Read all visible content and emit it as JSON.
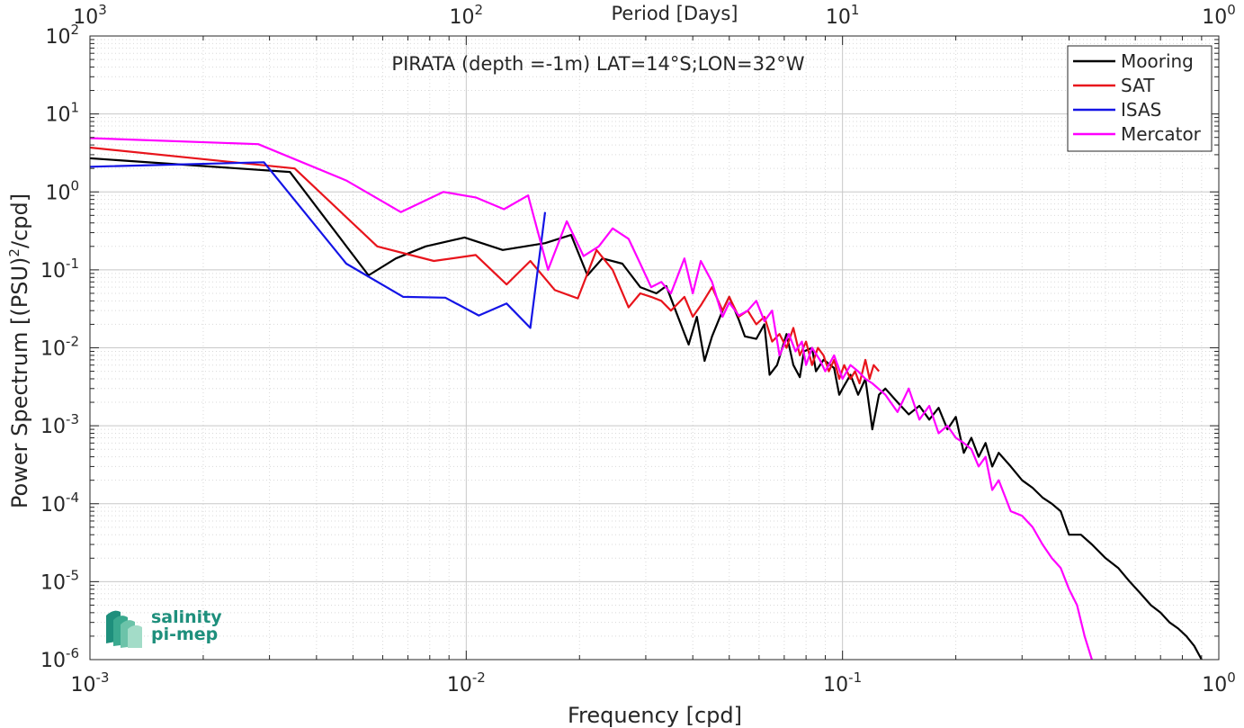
{
  "chart_data": {
    "type": "line",
    "title": "PIRATA (depth =-1m) LAT=14°S;LON=32°W",
    "xlabel": "Frequency [cpd]",
    "ylabel_main": "Power Spectrum [(PSU)",
    "ylabel_sup": "2",
    "ylabel_tail": "/cpd]",
    "top_xlabel": "Period [Days]",
    "xscale": "log",
    "yscale": "log",
    "xlim": [
      0.001,
      1
    ],
    "ylim": [
      1e-06,
      100
    ],
    "grid": true,
    "legend_position": "top-right",
    "x_ticks": [
      {
        "value": 0.001,
        "base": "10",
        "exp": "-3"
      },
      {
        "value": 0.01,
        "base": "10",
        "exp": "-2"
      },
      {
        "value": 0.1,
        "base": "10",
        "exp": "-1"
      },
      {
        "value": 1,
        "base": "10",
        "exp": "0"
      }
    ],
    "top_ticks": [
      {
        "frequency": 0.001,
        "base": "10",
        "exp": "3"
      },
      {
        "frequency": 0.01,
        "base": "10",
        "exp": "2"
      },
      {
        "frequency": 0.1,
        "base": "10",
        "exp": "1"
      },
      {
        "frequency": 1,
        "base": "10",
        "exp": "0"
      }
    ],
    "y_ticks": [
      {
        "value": 100,
        "base": "10",
        "exp": "2"
      },
      {
        "value": 10,
        "base": "10",
        "exp": "1"
      },
      {
        "value": 1,
        "base": "10",
        "exp": "0"
      },
      {
        "value": 0.1,
        "base": "10",
        "exp": "-1"
      },
      {
        "value": 0.01,
        "base": "10",
        "exp": "-2"
      },
      {
        "value": 0.001,
        "base": "10",
        "exp": "-3"
      },
      {
        "value": 0.0001,
        "base": "10",
        "exp": "-4"
      },
      {
        "value": 1e-05,
        "base": "10",
        "exp": "-5"
      },
      {
        "value": 1e-06,
        "base": "10",
        "exp": "-6"
      }
    ],
    "series": [
      {
        "name": "Mooring",
        "color": "#000000",
        "x": [
          0.001,
          0.0034,
          0.0055,
          0.0065,
          0.0078,
          0.0099,
          0.0125,
          0.0162,
          0.019,
          0.021,
          0.023,
          0.026,
          0.029,
          0.032,
          0.034,
          0.036,
          0.039,
          0.041,
          0.043,
          0.045,
          0.048,
          0.05,
          0.053,
          0.055,
          0.059,
          0.062,
          0.064,
          0.067,
          0.071,
          0.074,
          0.077,
          0.079,
          0.083,
          0.085,
          0.089,
          0.091,
          0.095,
          0.098,
          0.1,
          0.105,
          0.11,
          0.115,
          0.12,
          0.125,
          0.13,
          0.14,
          0.15,
          0.16,
          0.17,
          0.18,
          0.19,
          0.2,
          0.21,
          0.22,
          0.23,
          0.24,
          0.25,
          0.26,
          0.28,
          0.3,
          0.32,
          0.34,
          0.36,
          0.38,
          0.4,
          0.43,
          0.46,
          0.5,
          0.54,
          0.58,
          0.62,
          0.66,
          0.7,
          0.74,
          0.78,
          0.82,
          0.86,
          0.9
        ],
        "values": [
          2.7,
          1.8,
          0.085,
          0.14,
          0.2,
          0.26,
          0.18,
          0.22,
          0.28,
          0.085,
          0.14,
          0.12,
          0.06,
          0.05,
          0.062,
          0.03,
          0.011,
          0.025,
          0.0068,
          0.014,
          0.03,
          0.045,
          0.023,
          0.014,
          0.013,
          0.02,
          0.0045,
          0.006,
          0.015,
          0.006,
          0.0042,
          0.009,
          0.01,
          0.005,
          0.007,
          0.0065,
          0.0055,
          0.0025,
          0.003,
          0.0045,
          0.0025,
          0.004,
          0.0009,
          0.0025,
          0.003,
          0.002,
          0.0014,
          0.0018,
          0.0012,
          0.0017,
          0.0009,
          0.0013,
          0.00045,
          0.0007,
          0.0004,
          0.0006,
          0.0003,
          0.00045,
          0.0003,
          0.0002,
          0.00016,
          0.00012,
          0.0001,
          8e-05,
          4e-05,
          4e-05,
          3e-05,
          2e-05,
          1.5e-05,
          1e-05,
          7e-06,
          5e-06,
          4e-06,
          3e-06,
          2.5e-06,
          2e-06,
          1.5e-06,
          1e-06
        ]
      },
      {
        "name": "SAT",
        "color": "#e8141c",
        "x": [
          0.001,
          0.0035,
          0.0058,
          0.0082,
          0.0106,
          0.0128,
          0.0148,
          0.0172,
          0.0198,
          0.0222,
          0.0245,
          0.027,
          0.029,
          0.031,
          0.033,
          0.035,
          0.038,
          0.04,
          0.042,
          0.045,
          0.048,
          0.05,
          0.053,
          0.056,
          0.059,
          0.062,
          0.065,
          0.068,
          0.071,
          0.074,
          0.077,
          0.08,
          0.083,
          0.086,
          0.089,
          0.092,
          0.095,
          0.098,
          0.101,
          0.105,
          0.108,
          0.111,
          0.115,
          0.118,
          0.121,
          0.125
        ],
        "values": [
          3.7,
          2.0,
          0.2,
          0.13,
          0.155,
          0.065,
          0.13,
          0.055,
          0.043,
          0.18,
          0.1,
          0.033,
          0.05,
          0.045,
          0.04,
          0.03,
          0.045,
          0.025,
          0.035,
          0.06,
          0.03,
          0.045,
          0.025,
          0.03,
          0.02,
          0.025,
          0.012,
          0.015,
          0.01,
          0.018,
          0.008,
          0.012,
          0.006,
          0.01,
          0.008,
          0.005,
          0.007,
          0.004,
          0.006,
          0.004,
          0.005,
          0.0035,
          0.007,
          0.004,
          0.006,
          0.005
        ]
      },
      {
        "name": "ISAS",
        "color": "#1414e6",
        "x": [
          0.001,
          0.0029,
          0.0048,
          0.0068,
          0.0088,
          0.0108,
          0.0128,
          0.0148,
          0.0162
        ],
        "values": [
          2.1,
          2.4,
          0.12,
          0.045,
          0.044,
          0.026,
          0.037,
          0.018,
          0.55
        ]
      },
      {
        "name": "Mercator",
        "color": "#ff00ff",
        "x": [
          0.001,
          0.0028,
          0.0048,
          0.0067,
          0.0087,
          0.0106,
          0.0126,
          0.0146,
          0.0165,
          0.0185,
          0.0205,
          0.0225,
          0.0245,
          0.027,
          0.029,
          0.031,
          0.033,
          0.035,
          0.038,
          0.04,
          0.042,
          0.045,
          0.048,
          0.05,
          0.053,
          0.056,
          0.059,
          0.062,
          0.065,
          0.068,
          0.072,
          0.075,
          0.078,
          0.08,
          0.083,
          0.087,
          0.09,
          0.095,
          0.1,
          0.105,
          0.11,
          0.115,
          0.12,
          0.13,
          0.14,
          0.15,
          0.16,
          0.17,
          0.18,
          0.19,
          0.2,
          0.21,
          0.22,
          0.23,
          0.24,
          0.25,
          0.26,
          0.28,
          0.3,
          0.32,
          0.34,
          0.36,
          0.38,
          0.4,
          0.42,
          0.44,
          0.46
        ],
        "values": [
          4.9,
          4.1,
          1.4,
          0.55,
          1.0,
          0.85,
          0.6,
          0.9,
          0.1,
          0.42,
          0.15,
          0.2,
          0.34,
          0.25,
          0.12,
          0.06,
          0.07,
          0.05,
          0.14,
          0.05,
          0.13,
          0.07,
          0.025,
          0.038,
          0.026,
          0.03,
          0.04,
          0.022,
          0.03,
          0.008,
          0.015,
          0.009,
          0.012,
          0.006,
          0.01,
          0.007,
          0.005,
          0.008,
          0.004,
          0.006,
          0.005,
          0.004,
          0.0035,
          0.0025,
          0.0015,
          0.003,
          0.0012,
          0.0018,
          0.0008,
          0.001,
          0.0007,
          0.0006,
          0.0005,
          0.0003,
          0.0004,
          0.00015,
          0.0002,
          8e-05,
          7e-05,
          5e-05,
          3e-05,
          2e-05,
          1.5e-05,
          8e-06,
          5e-06,
          2e-06,
          1e-06
        ]
      }
    ]
  },
  "logo": {
    "line1": "salinity",
    "line2": "pi-mep"
  }
}
